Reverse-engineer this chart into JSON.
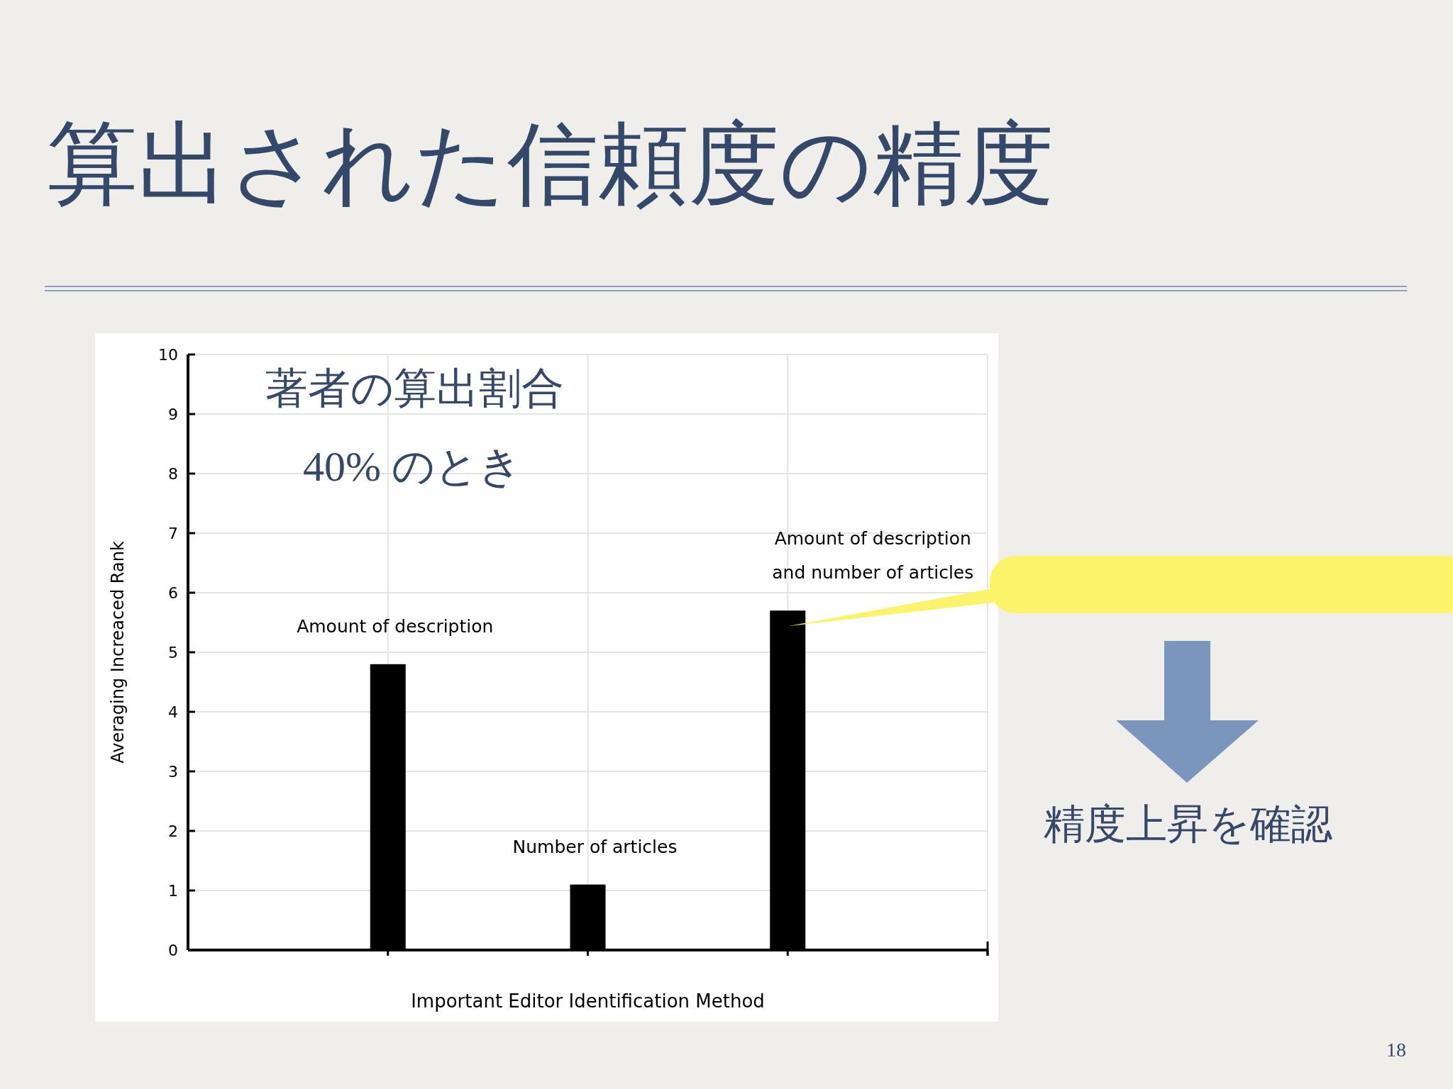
{
  "chart_data": {
    "type": "bar",
    "title": "算出された信頼度の精度",
    "categories": [
      "Amount of description",
      "Number of articles",
      "Amount of description\nand number of articles"
    ],
    "values": [
      4.8,
      1.1,
      5.7
    ],
    "color": "#000000",
    "xlabel": "Important Editor Identification Method",
    "ylabel": "Averaging Increaced Rank",
    "ylim": [
      0,
      10
    ],
    "yticks": [
      0,
      1,
      2,
      3,
      4,
      5,
      6,
      7,
      8,
      9,
      10
    ],
    "grid": true,
    "annotations": [
      "著者の算出割合",
      "40% のとき",
      "精度上昇を確認",
      "18"
    ]
  }
}
